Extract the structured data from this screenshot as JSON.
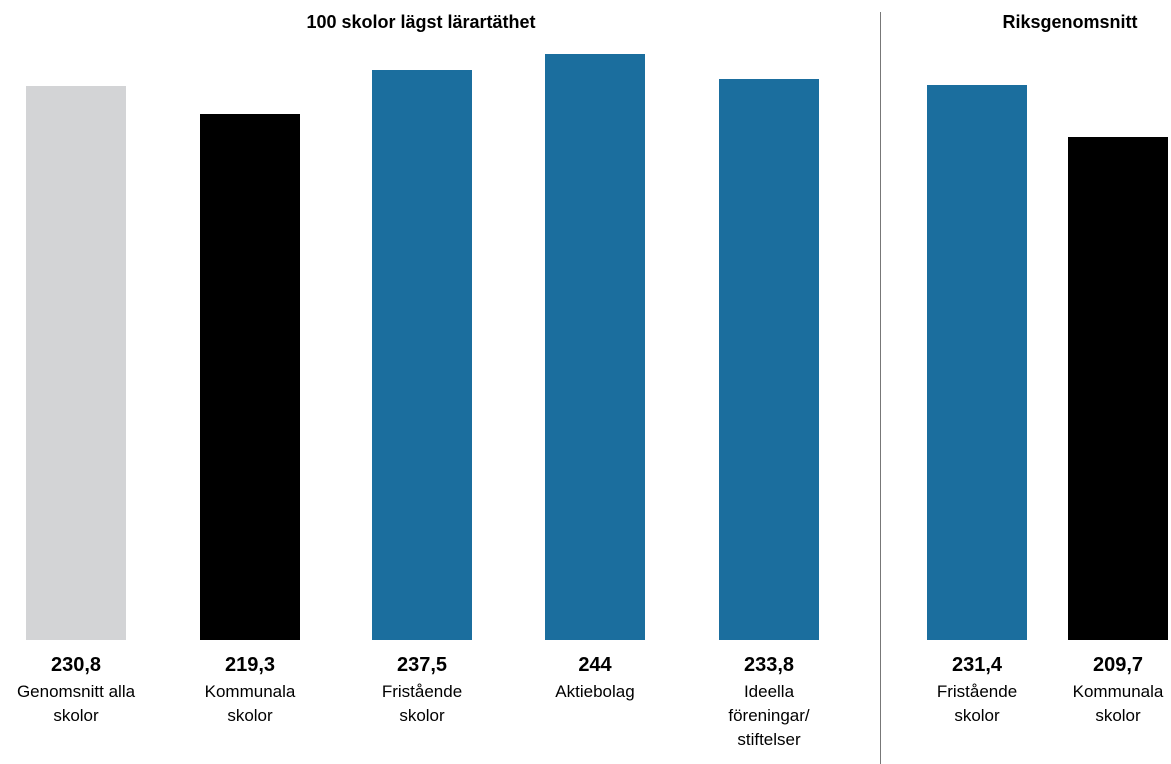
{
  "chart_data": [
    {
      "type": "bar",
      "title": "100 skolor lägst lärartäthet",
      "ylim": [
        0,
        250
      ],
      "grid": false,
      "categories": [
        [
          "Genomsnitt alla",
          "skolor"
        ],
        [
          "Kommunala",
          "skolor"
        ],
        [
          "Fristående",
          "skolor"
        ],
        [
          "Aktiebolag"
        ],
        [
          "Ideella",
          "föreningar/",
          "stiftelser"
        ]
      ],
      "values": [
        230.8,
        219.3,
        237.5,
        244,
        233.8
      ],
      "value_labels": [
        "230,8",
        "219,3",
        "237,5",
        "244",
        "233,8"
      ],
      "colors": [
        "#d3d4d6",
        "#000000",
        "#1b6e9e",
        "#1b6e9e",
        "#1b6e9e"
      ]
    },
    {
      "type": "bar",
      "title": "Riksgenomsnitt",
      "ylim": [
        0,
        250
      ],
      "grid": false,
      "categories": [
        [
          "Fristående",
          "skolor"
        ],
        [
          "Kommunala",
          "skolor"
        ]
      ],
      "values": [
        231.4,
        209.7
      ],
      "value_labels": [
        "231,4",
        "209,7"
      ],
      "colors": [
        "#1b6e9e",
        "#000000"
      ]
    }
  ]
}
